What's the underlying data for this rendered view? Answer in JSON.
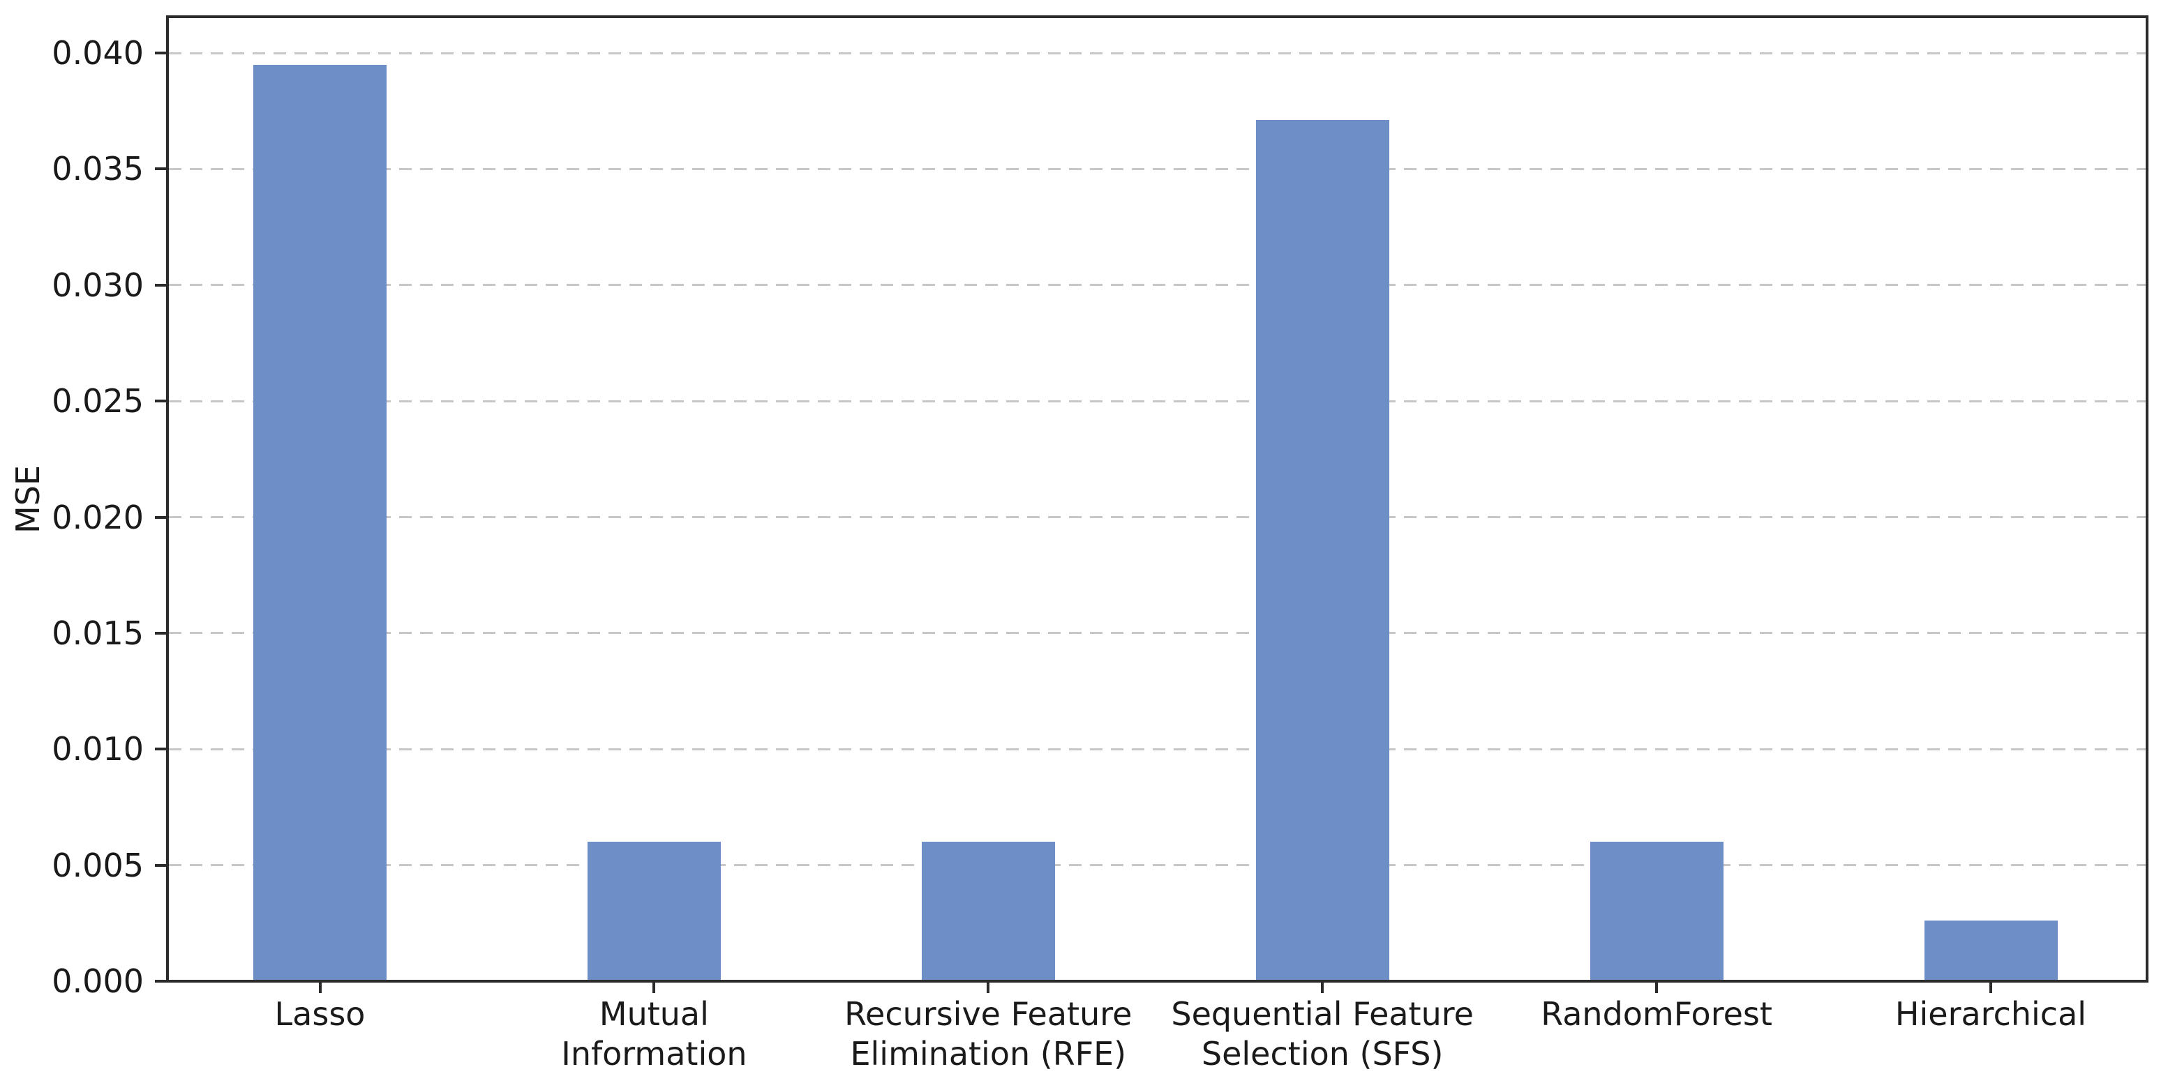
{
  "chart_data": {
    "type": "bar",
    "categories": [
      "Lasso",
      "Mutual\nInformation",
      "Recursive Feature\nElimination (RFE)",
      "Sequential Feature\nSelection (SFS)",
      "RandomForest",
      "Hierarchical"
    ],
    "values": [
      0.0395,
      0.006,
      0.006,
      0.0371,
      0.006,
      0.0026
    ],
    "title": "",
    "xlabel": "",
    "ylabel": "MSE",
    "ylim": [
      0,
      0.0416
    ],
    "yticks": [
      0.0,
      0.005,
      0.01,
      0.015,
      0.02,
      0.025,
      0.03,
      0.035,
      0.04
    ],
    "ytick_labels": [
      "0.000",
      "0.005",
      "0.010",
      "0.015",
      "0.020",
      "0.025",
      "0.030",
      "0.035",
      "0.040"
    ],
    "grid": "horizontal-dashed",
    "legend_position": "none",
    "bar_color": "#6d8ec6",
    "spine_color": "#2b2b2b",
    "grid_color": "#c7c7c7",
    "text_color": "#1a1a1a",
    "background_color": "#ffffff"
  }
}
